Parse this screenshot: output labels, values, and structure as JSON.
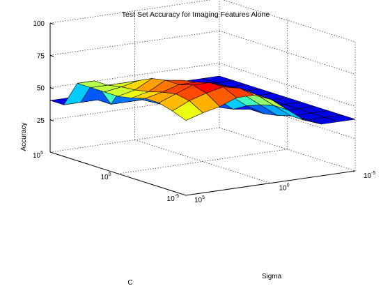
{
  "chart_data": {
    "type": "surface",
    "title": "Test Set Accuracy for Imaging Features Alone",
    "xlabel": "Sigma",
    "ylabel": "C",
    "zlabel": "Accuracy",
    "zlim": [
      0,
      100
    ],
    "z_ticks": [
      "25",
      "50",
      "75",
      "100"
    ],
    "x_ticks": [
      {
        "base": "10",
        "exp": "5"
      },
      {
        "base": "10",
        "exp": "0"
      },
      {
        "base": "10",
        "exp": "-5"
      }
    ],
    "y_ticks": [
      {
        "base": "10",
        "exp": "5"
      },
      {
        "base": "10",
        "exp": "0"
      },
      {
        "base": "10",
        "exp": "-5"
      }
    ],
    "grid": true,
    "colormap": "jet",
    "baseline_accuracy": 40,
    "surface": [
      [
        40,
        40,
        40,
        40,
        40,
        40,
        40,
        40,
        40,
        40,
        40
      ],
      [
        40,
        40,
        40,
        40,
        40,
        40,
        40,
        40,
        40,
        40,
        40
      ],
      [
        60,
        60,
        40,
        40,
        40,
        40,
        40,
        40,
        40,
        40,
        40
      ],
      [
        60,
        60,
        60,
        45,
        40,
        40,
        40,
        40,
        40,
        40,
        40
      ],
      [
        60,
        62,
        65,
        58,
        42,
        40,
        40,
        40,
        40,
        40,
        40
      ],
      [
        60,
        63,
        70,
        65,
        55,
        45,
        40,
        40,
        40,
        40,
        40
      ],
      [
        62,
        65,
        72,
        70,
        62,
        52,
        42,
        40,
        40,
        40,
        40
      ],
      [
        65,
        68,
        72,
        72,
        68,
        58,
        48,
        40,
        40,
        40,
        40
      ],
      [
        65,
        70,
        75,
        75,
        70,
        62,
        52,
        42,
        40,
        40,
        40
      ],
      [
        62,
        68,
        72,
        75,
        72,
        65,
        55,
        45,
        40,
        40,
        40
      ],
      [
        58,
        62,
        65,
        70,
        70,
        65,
        55,
        45,
        40,
        40,
        40
      ]
    ]
  }
}
